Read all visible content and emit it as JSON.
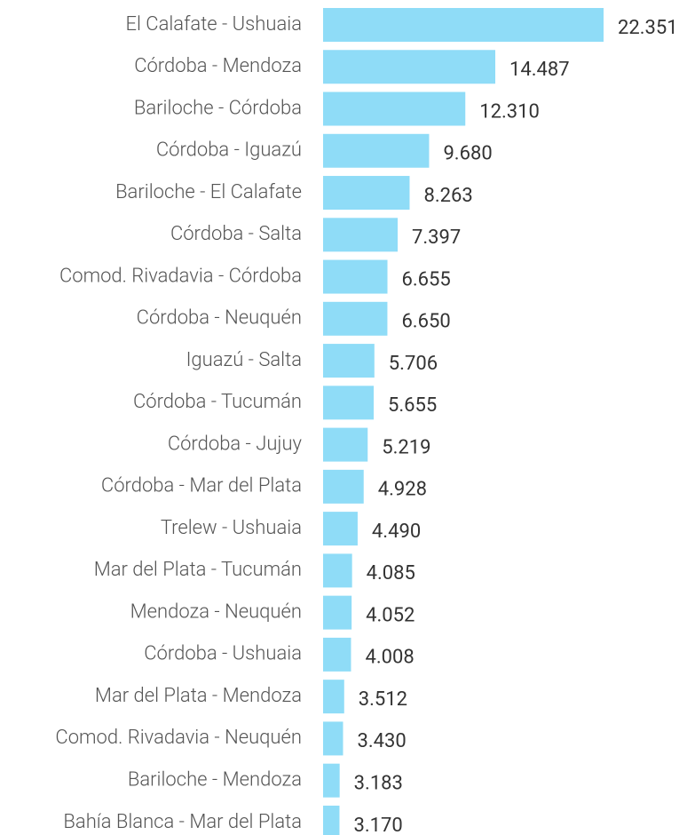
{
  "chart_data": {
    "type": "bar",
    "orientation": "horizontal",
    "categories": [
      "El Calafate - Ushuaia",
      "Córdoba - Mendoza",
      "Bariloche - Córdoba",
      "Córdoba - Iguazú",
      "Bariloche - El Calafate",
      "Córdoba - Salta",
      "Comod. Rivadavia - Córdoba",
      "Córdoba - Neuquén",
      "Iguazú - Salta",
      "Córdoba - Tucumán",
      "Córdoba - Jujuy",
      "Córdoba - Mar del Plata",
      "Trelew - Ushuaia",
      "Mar del Plata - Tucumán",
      "Mendoza - Neuquén",
      "Córdoba - Ushuaia",
      "Mar del Plata - Mendoza",
      "Comod. Rivadavia - Neuquén",
      "Bariloche - Mendoza",
      "Bahía Blanca - Mar del Plata"
    ],
    "values": [
      22351,
      14487,
      12310,
      9680,
      8263,
      7397,
      6655,
      6650,
      5706,
      5655,
      5219,
      4928,
      4490,
      4085,
      4052,
      4008,
      3512,
      3430,
      3183,
      3170
    ],
    "value_labels": [
      "22.351",
      "14.487",
      "12.310",
      "9.680",
      "8.263",
      "7.397",
      "6.655",
      "6.650",
      "5.706",
      "5.655",
      "5.219",
      "4.928",
      "4.490",
      "4.085",
      "4.052",
      "4.008",
      "3.512",
      "3.430",
      "3.183",
      "3.170"
    ],
    "color": "#8fdcf7",
    "xlim": [
      1980,
      22351
    ]
  }
}
